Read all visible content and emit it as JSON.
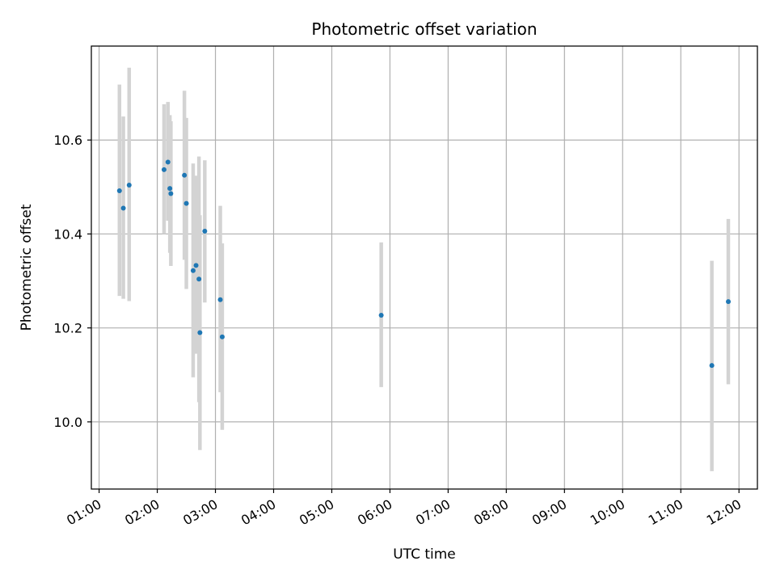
{
  "chart_data": {
    "type": "scatter",
    "title": "Photometric offset variation",
    "xlabel": "UTC time",
    "ylabel": "Photometric offset",
    "x_axis_type": "time",
    "xlim": [
      "00:52",
      "12:19"
    ],
    "ylim": [
      9.857,
      10.8
    ],
    "xticks": [
      "01:00",
      "02:00",
      "03:00",
      "04:00",
      "05:00",
      "06:00",
      "07:00",
      "08:00",
      "09:00",
      "10:00",
      "11:00",
      "12:00"
    ],
    "yticks": [
      10.0,
      10.2,
      10.4,
      10.6
    ],
    "ytick_labels": [
      "10.0",
      "10.2",
      "10.4",
      "10.6"
    ],
    "grid": true,
    "point_color": "#1f77b4",
    "errorbar_color": "#d3d3d3",
    "points": [
      {
        "x": "01:21",
        "y": 10.492,
        "ylow": 10.268,
        "yhigh": 10.718
      },
      {
        "x": "01:25",
        "y": 10.455,
        "ylow": 10.262,
        "yhigh": 10.65
      },
      {
        "x": "01:31",
        "y": 10.504,
        "ylow": 10.257,
        "yhigh": 10.754
      },
      {
        "x": "02:07",
        "y": 10.537,
        "ylow": 10.4,
        "yhigh": 10.676
      },
      {
        "x": "02:11",
        "y": 10.553,
        "ylow": 10.428,
        "yhigh": 10.681
      },
      {
        "x": "02:13",
        "y": 10.497,
        "ylow": 10.36,
        "yhigh": 10.653
      },
      {
        "x": "02:14",
        "y": 10.486,
        "ylow": 10.332,
        "yhigh": 10.64
      },
      {
        "x": "02:28",
        "y": 10.525,
        "ylow": 10.345,
        "yhigh": 10.705
      },
      {
        "x": "02:30",
        "y": 10.465,
        "ylow": 10.283,
        "yhigh": 10.647
      },
      {
        "x": "02:37",
        "y": 10.322,
        "ylow": 10.095,
        "yhigh": 10.55
      },
      {
        "x": "02:40",
        "y": 10.333,
        "ylow": 10.145,
        "yhigh": 10.524
      },
      {
        "x": "02:43",
        "y": 10.304,
        "ylow": 10.042,
        "yhigh": 10.565
      },
      {
        "x": "02:44",
        "y": 10.19,
        "ylow": 9.94,
        "yhigh": 10.44
      },
      {
        "x": "02:49",
        "y": 10.406,
        "ylow": 10.254,
        "yhigh": 10.557
      },
      {
        "x": "03:05",
        "y": 10.26,
        "ylow": 10.063,
        "yhigh": 10.46
      },
      {
        "x": "03:07",
        "y": 10.181,
        "ylow": 9.983,
        "yhigh": 10.38
      },
      {
        "x": "05:51",
        "y": 10.227,
        "ylow": 10.074,
        "yhigh": 10.382
      },
      {
        "x": "11:32",
        "y": 10.12,
        "ylow": 9.895,
        "yhigh": 10.343
      },
      {
        "x": "11:49",
        "y": 10.256,
        "ylow": 10.08,
        "yhigh": 10.432
      }
    ]
  }
}
